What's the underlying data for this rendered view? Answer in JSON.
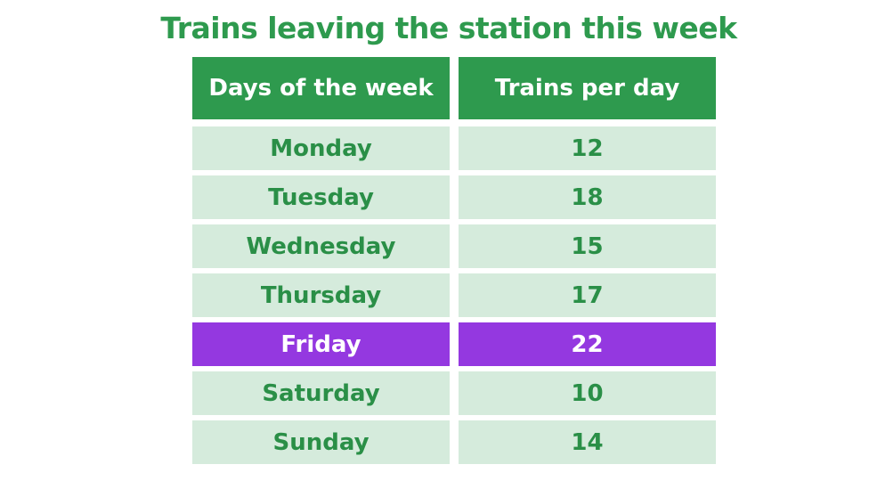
{
  "title": "Trains leaving the station this week",
  "table": {
    "header": [
      "Days of the week",
      "Trains per day"
    ],
    "rows": [
      [
        "Monday",
        12
      ],
      [
        "Tuesday",
        18
      ],
      [
        "Wednesday",
        15
      ],
      [
        "Thursday",
        17
      ],
      [
        "Friday",
        22
      ],
      [
        "Saturday",
        10
      ],
      [
        "Sunday",
        14
      ]
    ]
  }
}
